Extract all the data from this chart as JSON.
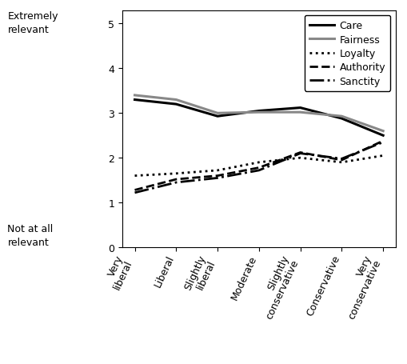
{
  "x_labels": [
    "Very\nliberal",
    "Liberal",
    "Slightly\nliberal",
    "Moderate",
    "Slightly\nconservative",
    "Conservative",
    "Very\nconservative"
  ],
  "x_positions": [
    0,
    1,
    2,
    3,
    4,
    5,
    6
  ],
  "series": {
    "Care": [
      3.3,
      3.2,
      2.93,
      3.05,
      3.12,
      2.88,
      2.5
    ],
    "Fairness": [
      3.4,
      3.3,
      3.0,
      3.02,
      3.02,
      2.93,
      2.6
    ],
    "Loyalty": [
      1.6,
      1.65,
      1.72,
      1.9,
      2.0,
      1.9,
      2.05
    ],
    "Authority": [
      1.28,
      1.52,
      1.6,
      1.78,
      2.12,
      1.95,
      2.38
    ],
    "Sanctity": [
      1.22,
      1.45,
      1.55,
      1.72,
      2.1,
      1.98,
      2.35
    ]
  },
  "line_styles": {
    "Care": {
      "color": "#000000",
      "linestyle": "-",
      "linewidth": 2.2
    },
    "Fairness": {
      "color": "#888888",
      "linestyle": "-",
      "linewidth": 2.2
    },
    "Loyalty": {
      "color": "#000000",
      "linestyle": ":",
      "linewidth": 2.0
    },
    "Authority": {
      "color": "#000000",
      "linestyle": "--",
      "linewidth": 2.0
    },
    "Sanctity": {
      "color": "#000000",
      "linestyle": "-.",
      "linewidth": 2.0
    }
  },
  "ylim": [
    0,
    5.3
  ],
  "yticks": [
    0,
    1,
    2,
    3,
    4,
    5
  ],
  "ylabel_left_top": "Extremely\nrelevant",
  "ylabel_left_bottom": "Not at all\nrelevant",
  "legend_loc": "upper right",
  "background_color": "#ffffff",
  "figsize": [
    5.1,
    4.56
  ],
  "dpi": 100
}
